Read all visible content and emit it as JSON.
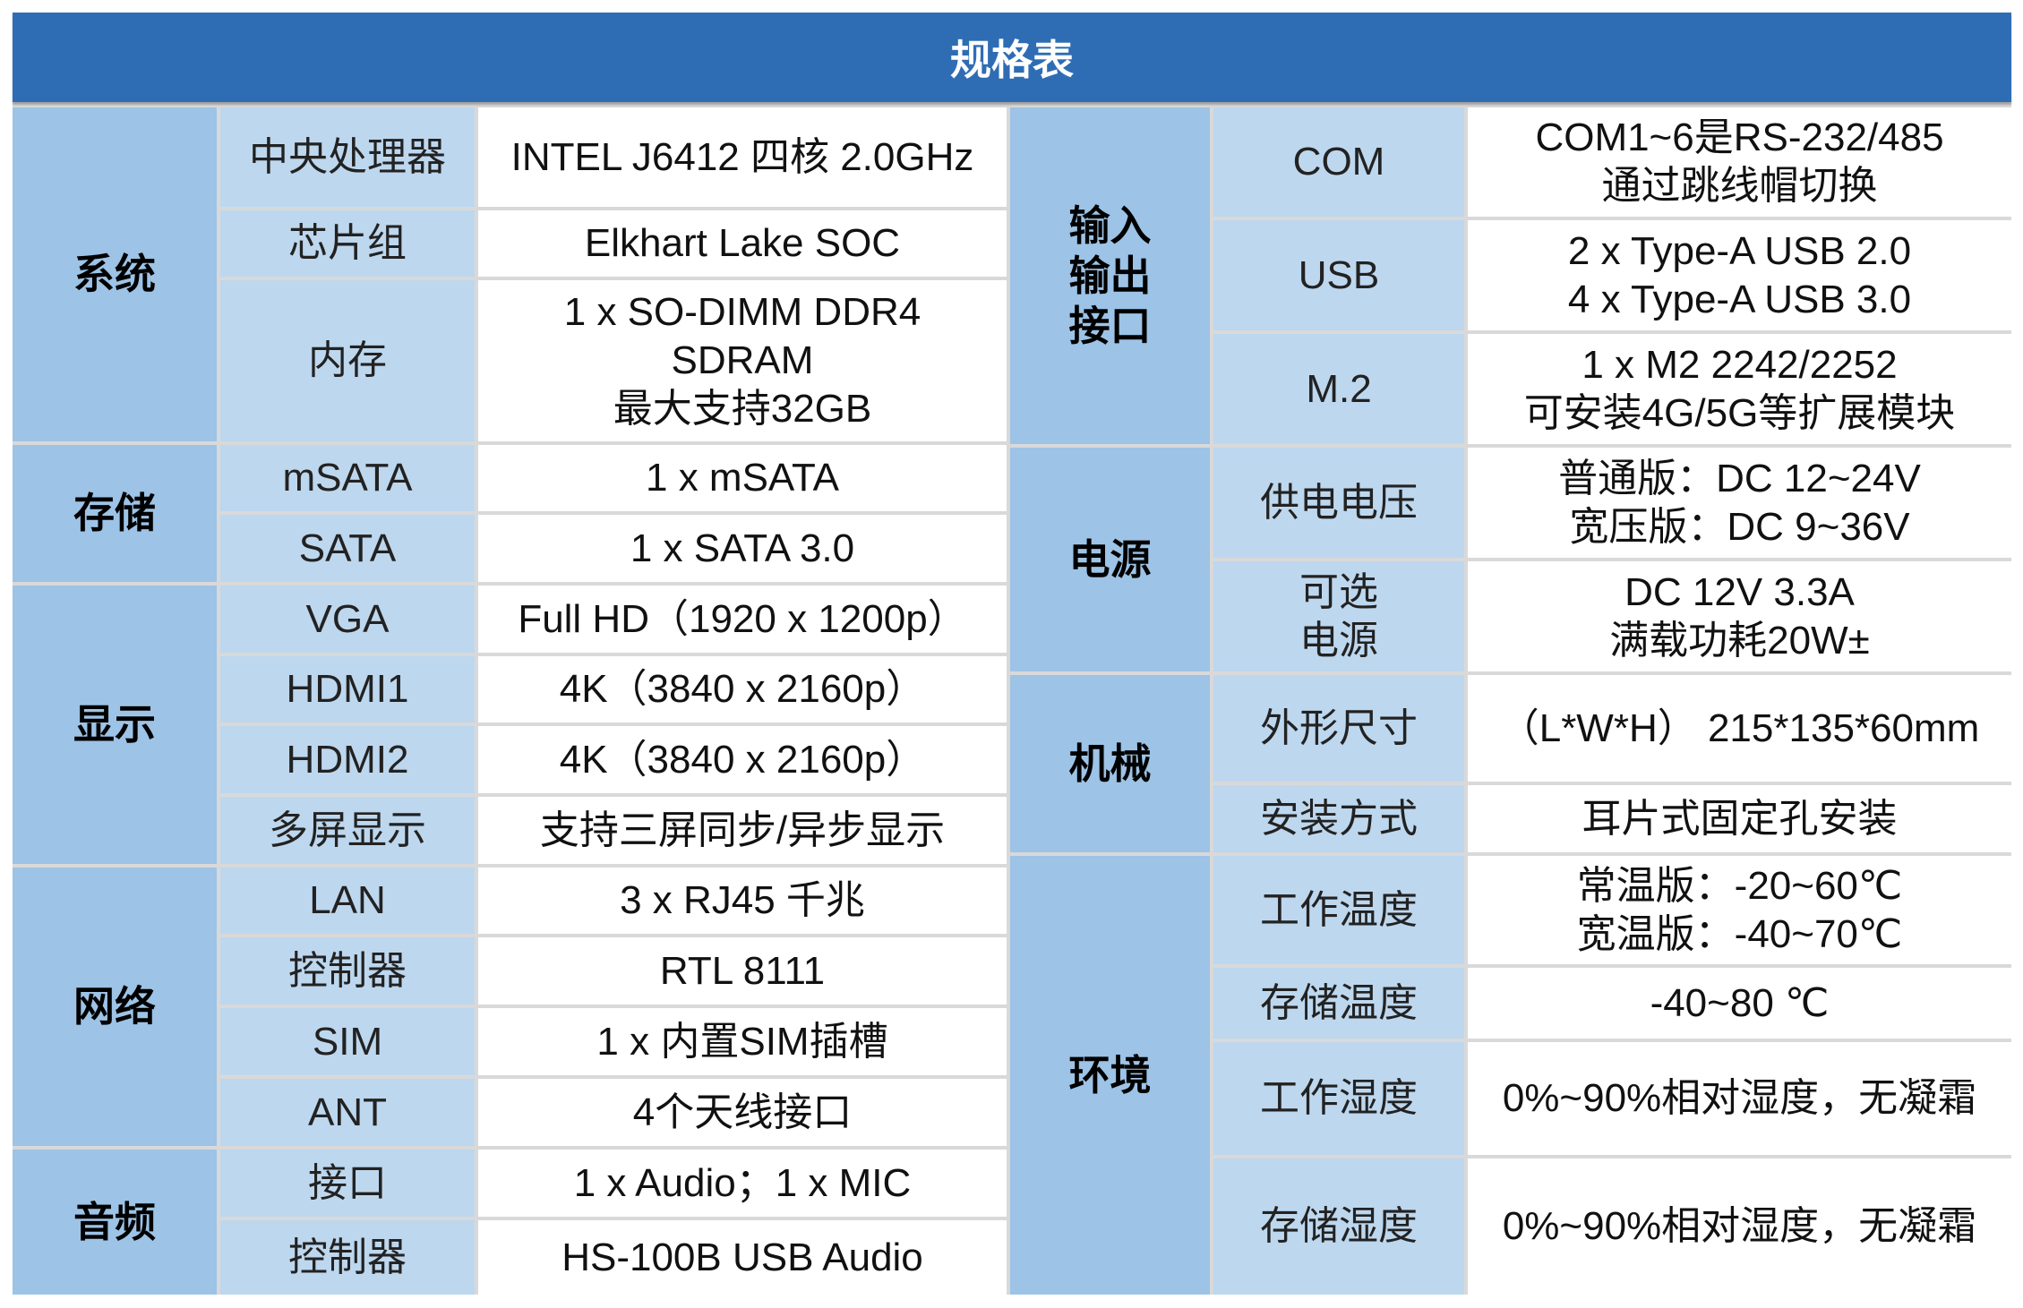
{
  "title": "规格表",
  "left": {
    "system": {
      "category": "系统",
      "rows": [
        {
          "label": "中央处理器",
          "value": "INTEL J6412 四核 2.0GHz"
        },
        {
          "label": "芯片组",
          "value": "Elkhart Lake SOC"
        },
        {
          "label": "内存",
          "value": "1 x SO-DIMM DDR4\nSDRAM\n最大支持32GB"
        }
      ]
    },
    "storage": {
      "category": "存储",
      "rows": [
        {
          "label": "mSATA",
          "value": "1 x mSATA"
        },
        {
          "label": "SATA",
          "value": "1 x SATA 3.0"
        }
      ]
    },
    "display": {
      "category": "显示",
      "rows": [
        {
          "label": "VGA",
          "value": "Full HD（1920 x 1200p）"
        },
        {
          "label": "HDMI1",
          "value": "4K（3840 x 2160p）"
        },
        {
          "label": "HDMI2",
          "value": "4K（3840 x 2160p）"
        },
        {
          "label": "多屏显示",
          "value": "支持三屏同步/异步显示"
        }
      ]
    },
    "network": {
      "category": "网络",
      "rows": [
        {
          "label": "LAN",
          "value": "3 x RJ45 千兆"
        },
        {
          "label": "控制器",
          "value": "RTL 8111"
        },
        {
          "label": "SIM",
          "value": "1 x 内置SIM插槽"
        },
        {
          "label": "ANT",
          "value": "4个天线接口"
        }
      ]
    },
    "audio": {
      "category": "音频",
      "rows": [
        {
          "label": "接口",
          "value": "1 x Audio；1 x MIC"
        },
        {
          "label": "控制器",
          "value": "HS-100B USB Audio"
        }
      ]
    }
  },
  "right": {
    "io": {
      "category": "输入\n输出\n接口",
      "rows": [
        {
          "label": "COM",
          "value": "COM1~6是RS-232/485\n通过跳线帽切换"
        },
        {
          "label": "USB",
          "value": "2 x Type-A USB 2.0\n4 x Type-A USB 3.0"
        },
        {
          "label": "M.2",
          "value": "1 x M2 2242/2252\n可安装4G/5G等扩展模块"
        }
      ]
    },
    "power": {
      "category": "电源",
      "rows": [
        {
          "label": "供电电压",
          "value": "普通版：DC 12~24V\n宽压版：DC   9~36V"
        },
        {
          "label": "可选\n电源",
          "value": "DC 12V 3.3A\n满载功耗20W±"
        }
      ]
    },
    "mechanical": {
      "category": "机械",
      "rows": [
        {
          "label": "外形尺寸",
          "value": "（L*W*H） 215*135*60mm"
        },
        {
          "label": "安装方式",
          "value": "耳片式固定孔安装"
        }
      ]
    },
    "environment": {
      "category": "环境",
      "rows": [
        {
          "label": "工作温度",
          "value": "常温版：-20~60℃\n宽温版：-40~70℃"
        },
        {
          "label": "存储温度",
          "value": "-40~80 ℃"
        },
        {
          "label": "工作湿度",
          "value": "0%~90%相对湿度，无凝霜"
        },
        {
          "label": "存储湿度",
          "value": "0%~90%相对湿度，无凝霜"
        }
      ]
    }
  }
}
